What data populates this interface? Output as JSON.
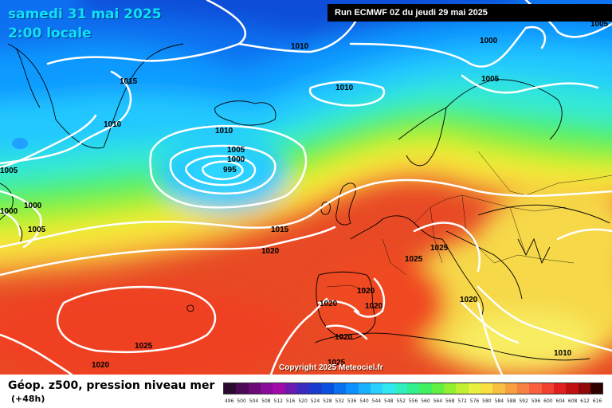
{
  "header": {
    "date": "samedi 31 mai 2025",
    "local_time": "2:00 locale",
    "run_info": "Run ECMWF 0Z du jeudi 29 mai 2025"
  },
  "footer": {
    "parameter": "Géop. z500, pression niveau mer",
    "forecast_step": "(+48h)",
    "copyright": "Copyright 2025 Meteociel.fr"
  },
  "legend": {
    "values": [
      "496",
      "500",
      "504",
      "508",
      "512",
      "516",
      "520",
      "524",
      "528",
      "532",
      "536",
      "540",
      "544",
      "548",
      "552",
      "556",
      "560",
      "564",
      "568",
      "572",
      "576",
      "580",
      "584",
      "588",
      "592",
      "596",
      "600",
      "604",
      "608",
      "612",
      "616"
    ],
    "colors": [
      "#2a0a2e",
      "#4b0a55",
      "#6c0a78",
      "#8a0a9a",
      "#a00aa8",
      "#6a1ab0",
      "#3a2ac0",
      "#1a3ad0",
      "#0a50e0",
      "#0a70f0",
      "#0a90ff",
      "#18b0ff",
      "#28d0ff",
      "#30e8f0",
      "#30f0c0",
      "#30f090",
      "#40f060",
      "#60f040",
      "#90f030",
      "#c0f030",
      "#e8f040",
      "#f8e040",
      "#f8c040",
      "#f8a040",
      "#f88040",
      "#f86040",
      "#f04030",
      "#e02020",
      "#c01010",
      "#900808",
      "#300000"
    ]
  },
  "isobars": [
    "1005",
    "1000",
    "1010",
    "1015",
    "1010",
    "1010",
    "1005",
    "1005",
    "1000",
    "995",
    "1010",
    "1000",
    "1000",
    "1005",
    "1015",
    "1020",
    "1025",
    "1025",
    "1020",
    "1020",
    "1020",
    "1020",
    "1025",
    "1025",
    "1020",
    "1010",
    "1020"
  ]
}
